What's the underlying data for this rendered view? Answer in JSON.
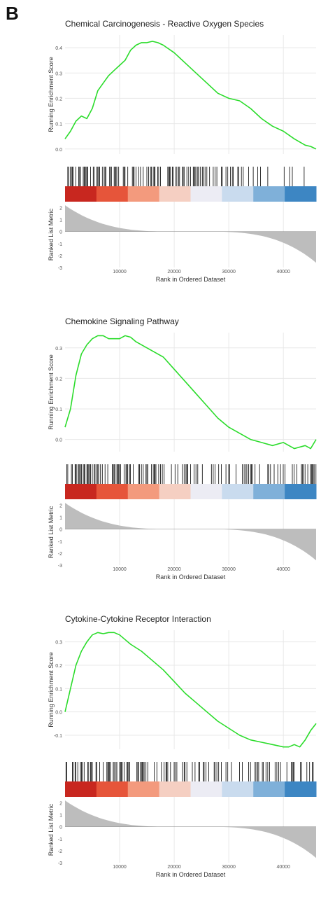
{
  "panel_label": "B",
  "colors": {
    "es_line": "#2bdc2b",
    "hits": "#000000",
    "metric_fill": "#bdbdbd",
    "grid": "#e8e8e8",
    "gradient": [
      "#c8271f",
      "#e6553a",
      "#f39a7d",
      "#f5cfc2",
      "#ececf4",
      "#c9dbee",
      "#7fb0d9",
      "#3d86c3"
    ]
  },
  "chart_data": [
    {
      "type": "line",
      "title": "Chemical Carcinogenesis - Reactive Oxygen Species",
      "ylabel": "Running Enrichment Score",
      "ylabel2": "Ranked List Metric",
      "xlabel": "Rank in Ordered Dataset",
      "xlim": [
        0,
        46000
      ],
      "xticks": [
        10000,
        20000,
        30000,
        40000
      ],
      "ylim": [
        -0.02,
        0.45
      ],
      "yticks": [
        0.0,
        0.1,
        0.2,
        0.3,
        0.4
      ],
      "metric_ylim": [
        -3,
        2.5
      ],
      "metric_yticks": [
        2,
        1,
        0,
        -1,
        -2,
        -3
      ],
      "grid": true,
      "series": [
        {
          "x": [
            0,
            1000,
            2000,
            3000,
            4000,
            5000,
            6000,
            7000,
            8000,
            9000,
            10000,
            11000,
            12000,
            13000,
            14000,
            15000,
            16000,
            17000,
            18000,
            20000,
            22000,
            24000,
            26000,
            28000,
            30000,
            32000,
            34000,
            36000,
            38000,
            40000,
            42000,
            44000,
            45000,
            46000
          ],
          "y": [
            0.04,
            0.07,
            0.11,
            0.13,
            0.12,
            0.16,
            0.23,
            0.26,
            0.29,
            0.31,
            0.33,
            0.35,
            0.39,
            0.41,
            0.42,
            0.42,
            0.425,
            0.42,
            0.41,
            0.38,
            0.34,
            0.3,
            0.26,
            0.22,
            0.2,
            0.19,
            0.16,
            0.12,
            0.09,
            0.07,
            0.04,
            0.015,
            0.01,
            0.0
          ]
        }
      ],
      "hit_density": [
        1.0,
        0.95,
        0.9,
        0.85,
        0.75,
        0.6,
        0.45,
        0.3,
        0.15
      ]
    },
    {
      "type": "line",
      "title": "Chemokine Signaling Pathway",
      "ylabel": "Running Enrichment Score",
      "ylabel2": "Ranked List Metric",
      "xlabel": "Rank in Ordered Dataset",
      "xlim": [
        0,
        46000
      ],
      "xticks": [
        10000,
        20000,
        30000,
        40000
      ],
      "ylim": [
        -0.04,
        0.35
      ],
      "yticks": [
        0.0,
        0.1,
        0.2,
        0.3
      ],
      "metric_ylim": [
        -3,
        2.5
      ],
      "metric_yticks": [
        2,
        1,
        0,
        -1,
        -2,
        -3
      ],
      "grid": true,
      "series": [
        {
          "x": [
            0,
            1000,
            2000,
            3000,
            4000,
            5000,
            6000,
            7000,
            8000,
            9000,
            10000,
            11000,
            12000,
            13000,
            14000,
            15000,
            16000,
            18000,
            20000,
            22000,
            24000,
            26000,
            28000,
            30000,
            32000,
            34000,
            36000,
            38000,
            40000,
            42000,
            44000,
            45000,
            46000
          ],
          "y": [
            0.04,
            0.1,
            0.21,
            0.28,
            0.31,
            0.33,
            0.34,
            0.34,
            0.33,
            0.33,
            0.33,
            0.34,
            0.335,
            0.32,
            0.31,
            0.3,
            0.29,
            0.27,
            0.23,
            0.19,
            0.15,
            0.11,
            0.07,
            0.04,
            0.02,
            0.0,
            -0.01,
            -0.02,
            -0.01,
            -0.03,
            -0.02,
            -0.03,
            0.0
          ]
        }
      ],
      "hit_density": [
        1.0,
        0.95,
        0.9,
        0.85,
        0.8,
        0.7,
        0.6,
        0.55,
        0.5
      ]
    },
    {
      "type": "line",
      "title": "Cytokine-Cytokine Receptor Interaction",
      "ylabel": "Running Enrichment Score",
      "ylabel2": "Ranked List Metric",
      "xlabel": "Rank in Ordered Dataset",
      "xlim": [
        0,
        46000
      ],
      "xticks": [
        10000,
        20000,
        30000,
        40000
      ],
      "ylim": [
        -0.16,
        0.35
      ],
      "yticks": [
        -0.1,
        0.0,
        0.1,
        0.2,
        0.3
      ],
      "metric_ylim": [
        -3,
        2.5
      ],
      "metric_yticks": [
        2,
        1,
        0,
        -1,
        -2,
        -3
      ],
      "grid": true,
      "series": [
        {
          "x": [
            0,
            1000,
            2000,
            3000,
            4000,
            5000,
            6000,
            7000,
            8000,
            9000,
            10000,
            11000,
            12000,
            14000,
            16000,
            18000,
            20000,
            22000,
            24000,
            26000,
            28000,
            30000,
            32000,
            34000,
            36000,
            38000,
            40000,
            41000,
            42000,
            43000,
            44000,
            45000,
            46000
          ],
          "y": [
            0.0,
            0.1,
            0.2,
            0.26,
            0.3,
            0.33,
            0.34,
            0.335,
            0.34,
            0.34,
            0.33,
            0.31,
            0.29,
            0.26,
            0.22,
            0.18,
            0.13,
            0.08,
            0.04,
            0.0,
            -0.04,
            -0.07,
            -0.1,
            -0.12,
            -0.13,
            -0.14,
            -0.15,
            -0.15,
            -0.14,
            -0.15,
            -0.12,
            -0.08,
            -0.05
          ]
        }
      ],
      "hit_density": [
        1.0,
        0.95,
        0.9,
        0.8,
        0.75,
        0.7,
        0.6,
        0.55,
        0.5
      ]
    }
  ]
}
